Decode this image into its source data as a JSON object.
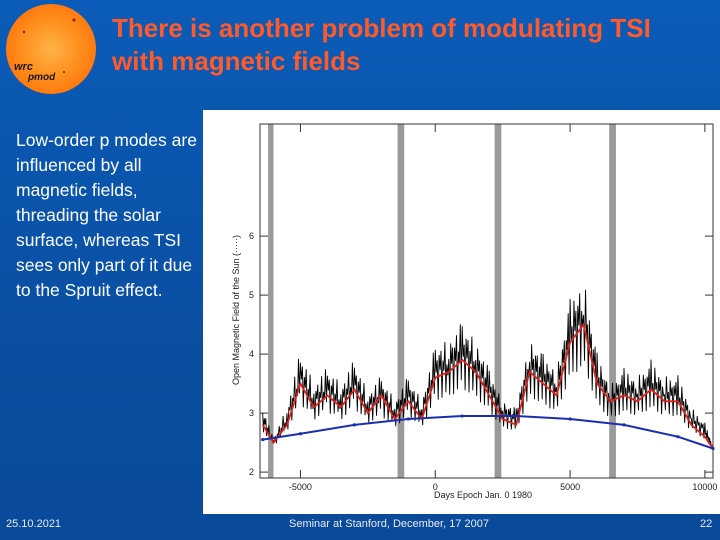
{
  "slide": {
    "title_line1": "There is another problem of modulating TSI",
    "title_line2": "with magnetic fields",
    "body": "Low-order p modes are influenced by all magnetic fields, threading the solar surface, whereas TSI sees only part of it due to the Spruit effect.",
    "logo_text_top": "wrc",
    "logo_text_bottom": "pmod",
    "footer_left": "25.10.2021",
    "footer_center": "Seminar at Stanford, December, 17 2007",
    "footer_right": "22"
  },
  "colors": {
    "title": "#ff5a2a",
    "background": "#0a4fa3",
    "sun": "#ff8c1a",
    "daily_series": "#000000",
    "smoothed_series": "#e0201a",
    "fit_series": "#1a2fb0",
    "bands": "#9a9a9a"
  },
  "chart_data": {
    "type": "line",
    "title": "",
    "xlabel": "Days Epoch Jan. 0 1980",
    "ylabel": "Open Magnetic Field of the Sun (·····)",
    "xlim": [
      -6500,
      10300
    ],
    "ylim": [
      1.9,
      7.9
    ],
    "xticks": [
      -5000,
      0,
      5000,
      10000
    ],
    "yticks": [
      2,
      3,
      4,
      5,
      6
    ],
    "xtick_labels": [
      "-5000",
      "0",
      "5000",
      "10000"
    ],
    "ytick_labels": [
      "2",
      "3",
      "4",
      "5",
      "6"
    ],
    "shaded_bands_x": [
      [
        -6200,
        -6000
      ],
      [
        -1400,
        -1150
      ],
      [
        2200,
        2450
      ],
      [
        6450,
        6700
      ]
    ],
    "series": [
      {
        "style": "black-noisy",
        "x": [
          -6400,
          -6000,
          -5500,
          -5000,
          -4500,
          -4000,
          -3500,
          -3000,
          -2500,
          -2000,
          -1500,
          -1000,
          -500,
          0,
          500,
          1000,
          1500,
          2000,
          2500,
          3000,
          3500,
          4000,
          4500,
          5000,
          5500,
          6000,
          6500,
          7000,
          7500,
          8000,
          8500,
          9000,
          9500,
          10000,
          10300
        ],
        "values": [
          2.9,
          2.5,
          2.9,
          3.6,
          3.2,
          3.4,
          3.2,
          3.5,
          3.1,
          3.3,
          3.0,
          3.3,
          3.0,
          3.7,
          3.8,
          4.0,
          3.8,
          3.4,
          3.0,
          2.9,
          3.8,
          3.6,
          3.4,
          4.3,
          4.6,
          3.6,
          3.2,
          3.4,
          3.3,
          3.5,
          3.3,
          3.3,
          2.9,
          2.7,
          2.4
        ]
      },
      {
        "style": "red-smoothed",
        "x": [
          -6400,
          -6000,
          -5500,
          -5000,
          -4500,
          -4000,
          -3500,
          -3000,
          -2500,
          -2000,
          -1500,
          -1000,
          -500,
          0,
          500,
          1000,
          1500,
          2000,
          2500,
          3000,
          3500,
          4000,
          4500,
          5000,
          5500,
          6000,
          6500,
          7000,
          7500,
          8000,
          8500,
          9000,
          9500,
          10000,
          10300
        ],
        "values": [
          2.8,
          2.5,
          2.8,
          3.5,
          3.1,
          3.3,
          3.1,
          3.4,
          3.0,
          3.3,
          2.9,
          3.2,
          2.9,
          3.6,
          3.7,
          3.9,
          3.7,
          3.3,
          2.9,
          2.8,
          3.7,
          3.5,
          3.3,
          4.2,
          4.5,
          3.5,
          3.2,
          3.3,
          3.2,
          3.4,
          3.2,
          3.2,
          2.8,
          2.6,
          2.4
        ]
      },
      {
        "style": "blue-fit",
        "x": [
          -6400,
          -5000,
          -3000,
          -1000,
          1000,
          3000,
          5000,
          7000,
          9000,
          10300
        ],
        "values": [
          2.55,
          2.65,
          2.8,
          2.9,
          2.95,
          2.95,
          2.9,
          2.8,
          2.6,
          2.4
        ]
      }
    ]
  }
}
